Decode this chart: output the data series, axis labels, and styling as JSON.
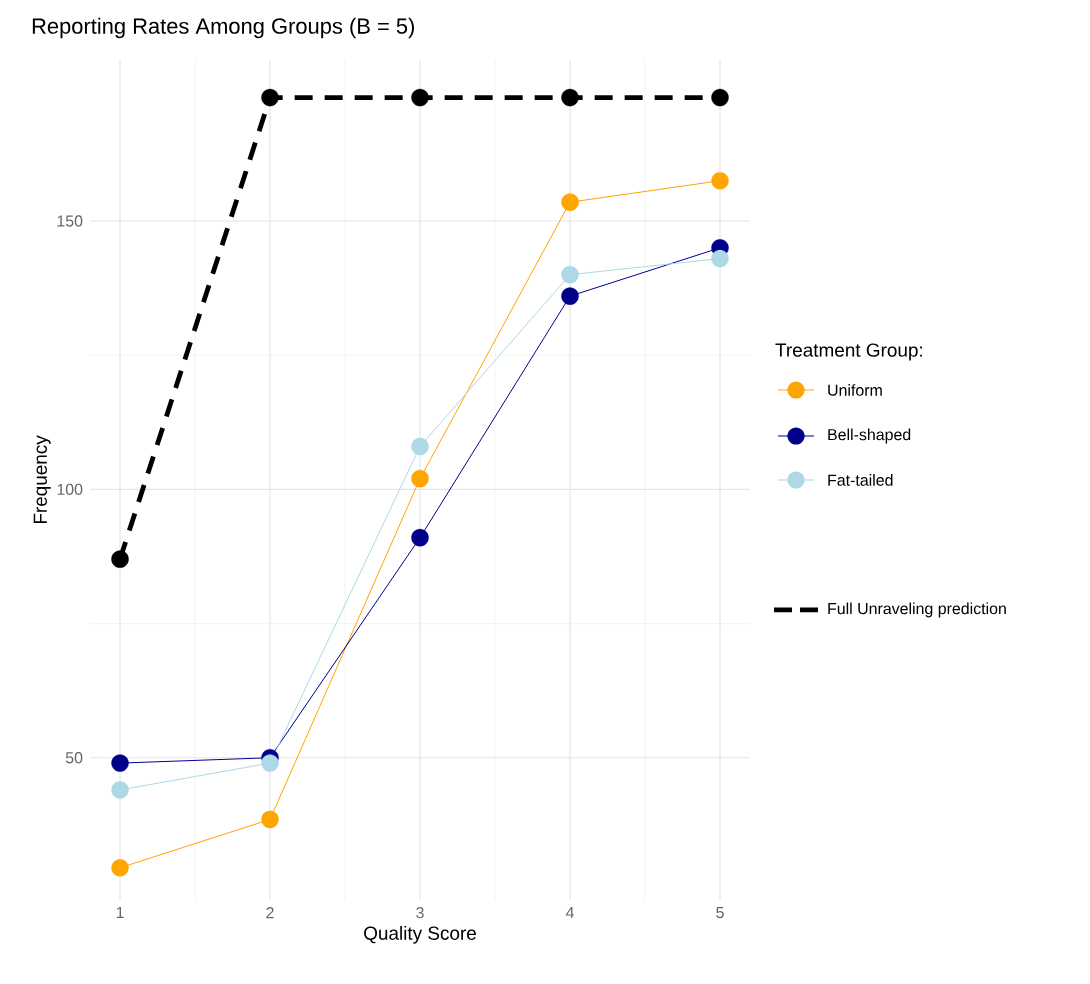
{
  "chart_data": {
    "type": "line",
    "title": "Reporting Rates Among Groups (B = 5)",
    "xlabel": "Quality Score",
    "ylabel": "Frequency",
    "legend_title": "Treatment Group:",
    "x": [
      1,
      2,
      3,
      4,
      5
    ],
    "xlim": [
      0.8,
      5.2
    ],
    "ylim": [
      23.5,
      180
    ],
    "xticks": [
      1,
      2,
      3,
      4,
      5
    ],
    "yticks": [
      50,
      100,
      150
    ],
    "grid": true,
    "legend": "right",
    "marker": "circle",
    "series": [
      {
        "name": "Uniform",
        "color": "#ffa500",
        "values": [
          29.5,
          38.5,
          102,
          153.5,
          157.5
        ],
        "line_style": "solid"
      },
      {
        "name": "Bell-shaped",
        "color": "#00008b",
        "values": [
          49,
          50,
          91,
          136,
          145
        ],
        "line_style": "solid"
      },
      {
        "name": "Fat-tailed",
        "color": "#add8e6",
        "values": [
          44,
          49,
          108,
          140,
          143
        ],
        "line_style": "solid"
      },
      {
        "name": "Full Unraveling prediction",
        "color": "#000000",
        "values": [
          87,
          173,
          173,
          173,
          173
        ],
        "line_style": "dashed"
      }
    ]
  }
}
